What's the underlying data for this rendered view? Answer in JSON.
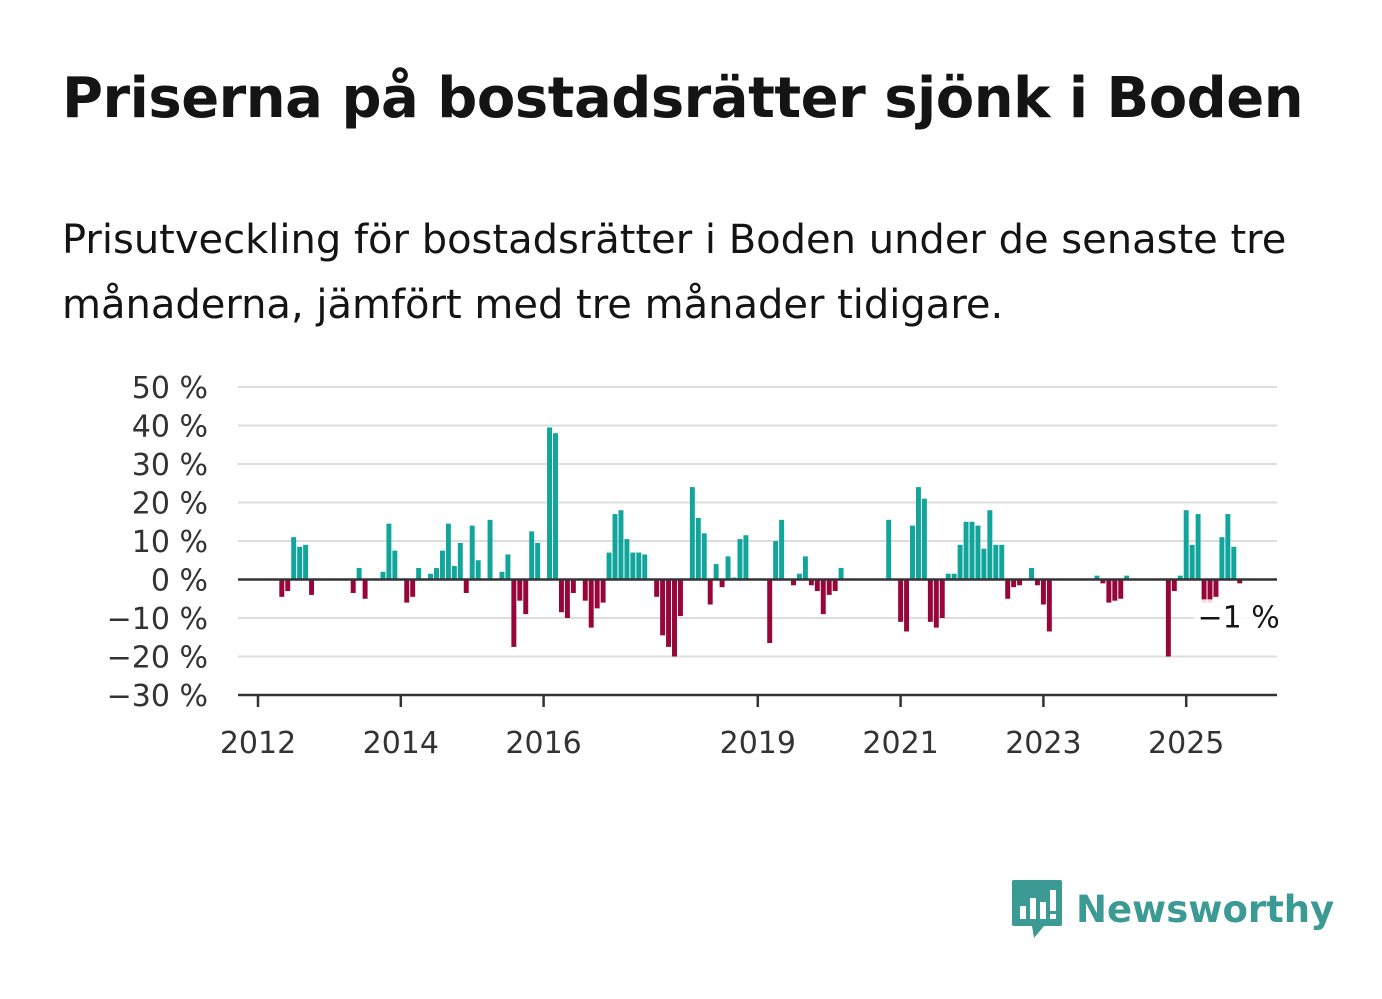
{
  "title": "Priserna på bostadsrätter sjönk i Boden",
  "subtitle": "Prisutveckling för bostadsrätter i Boden under de senaste tre månaderna, jämfört med tre månader tidigare.",
  "brand": {
    "name": "Newsworthy",
    "icon": "newsworthy-bar-chart-bubble-icon",
    "color": "#3b9a93"
  },
  "colors": {
    "positive": "#12a59c",
    "negative": "#970539",
    "grid": "#dddddd",
    "axis": "#333333"
  },
  "chart_data": {
    "type": "bar",
    "x_start": 2012,
    "x_step_months": 1,
    "ylim": [
      -30,
      50
    ],
    "yticks": [
      50,
      40,
      30,
      20,
      10,
      0,
      -10,
      -20,
      -30
    ],
    "ytick_labels": [
      "50 %",
      "40 %",
      "30 %",
      "20 %",
      "10 %",
      "0 %",
      "−10 %",
      "−20 %",
      "−30 %"
    ],
    "xticks": [
      2012,
      2014,
      2016,
      2019,
      2021,
      2023,
      2025
    ],
    "xtick_labels": [
      "2012",
      "2014",
      "2016",
      "2019",
      "2021",
      "2023",
      "2025"
    ],
    "values": [
      0,
      0,
      0,
      0,
      -4.5,
      -3,
      11,
      8.5,
      9,
      -4,
      0,
      0,
      0,
      0,
      0,
      0,
      -3.5,
      3,
      -5,
      0,
      0,
      2,
      14.5,
      7.5,
      0,
      -6,
      -4.5,
      3,
      0,
      1.5,
      3,
      7.5,
      14.5,
      3.5,
      9.5,
      -3.5,
      14,
      5,
      0,
      15.5,
      0,
      2,
      6.5,
      -17.5,
      -5.5,
      -9,
      12.5,
      9.5,
      0,
      39.5,
      38,
      -8.5,
      -10,
      -3.5,
      0,
      -5.5,
      -12.5,
      -7.5,
      -6,
      7,
      17,
      18,
      10.5,
      7,
      7,
      6.5,
      0,
      -4.5,
      -14.5,
      -17.5,
      -20,
      -9.5,
      0,
      24,
      16,
      12,
      -6.5,
      4,
      -2,
      6,
      0.5,
      10.5,
      11.5,
      0,
      0,
      0,
      -16.5,
      10,
      15.5,
      0,
      -1.5,
      1.5,
      6,
      -1.5,
      -3,
      -9,
      -4,
      -3,
      3,
      0,
      0,
      0,
      0,
      0,
      0,
      0,
      15.5,
      0,
      -11,
      -13.5,
      14,
      24,
      21,
      -11,
      -12.5,
      -10,
      1.5,
      1.5,
      9,
      15,
      15,
      14,
      8,
      18,
      9,
      9,
      -5,
      -2,
      -1.5,
      0,
      3,
      -1.5,
      -6.5,
      -13.5,
      0,
      0,
      0,
      0,
      0,
      0,
      0,
      1,
      -1,
      -6,
      -5.5,
      -5,
      1,
      0,
      0,
      0,
      0,
      0,
      0,
      -20,
      -3,
      1,
      18,
      9,
      17,
      -6,
      -6,
      -4.5,
      11,
      17,
      8.5,
      -1
    ],
    "last_value_label": "−1 %"
  }
}
